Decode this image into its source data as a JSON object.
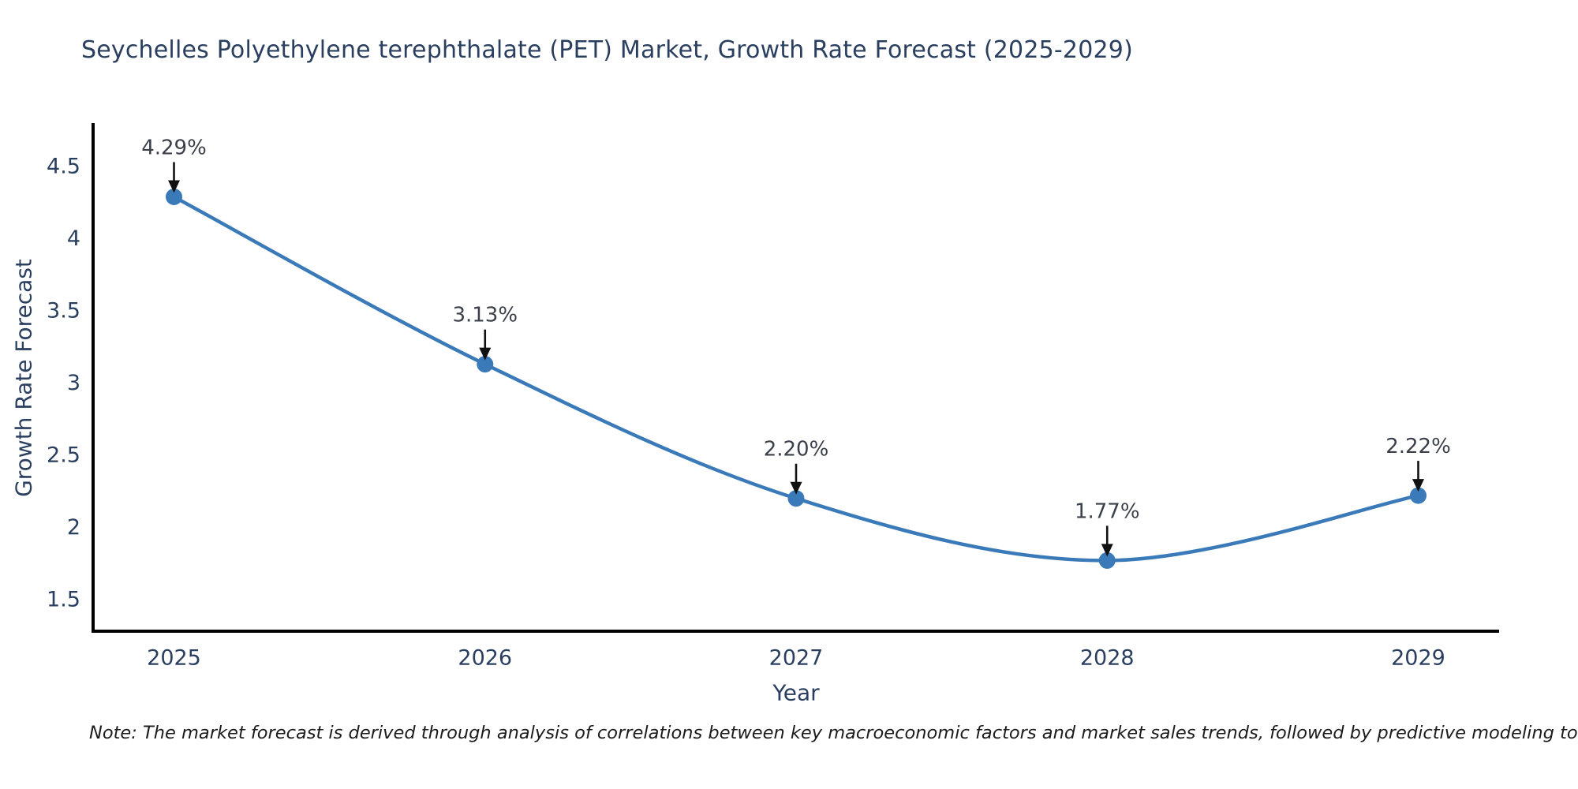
{
  "title": "Seychelles Polyethylene terephthalate (PET) Market, Growth Rate Forecast (2025-2029)",
  "footnote": "Note: The market forecast is derived through analysis of correlations between key macroeconomic factors and market sales trends, followed by predictive modeling to project future sales",
  "chart_data": {
    "type": "line",
    "title": "Seychelles Polyethylene terephthalate (PET) Market, Growth Rate Forecast (2025-2029)",
    "xlabel": "Year",
    "ylabel": "Growth Rate Forecast",
    "x": [
      2025,
      2026,
      2027,
      2028,
      2029
    ],
    "values": [
      4.29,
      3.13,
      2.2,
      1.77,
      2.22
    ],
    "point_labels": [
      "4.29%",
      "3.13%",
      "2.20%",
      "1.77%",
      "2.22%"
    ],
    "xticks": [
      2025,
      2026,
      2027,
      2028,
      2029
    ],
    "xtick_labels": [
      "2025",
      "2026",
      "2027",
      "2028",
      "2029"
    ],
    "yticks": [
      1.5,
      2,
      2.5,
      3,
      3.5,
      4,
      4.5
    ],
    "ytick_labels": [
      "1.5",
      "2",
      "2.5",
      "3",
      "3.5",
      "4",
      "4.5"
    ],
    "xlim": [
      2024.74,
      2029.26
    ],
    "ylim": [
      1.28,
      4.79
    ],
    "grid": false,
    "legend": false,
    "line_color": "#3b7ab8",
    "marker_color": "#3b7ab8",
    "annotation_arrow_color": "#111111",
    "spine_color": "#000000"
  }
}
